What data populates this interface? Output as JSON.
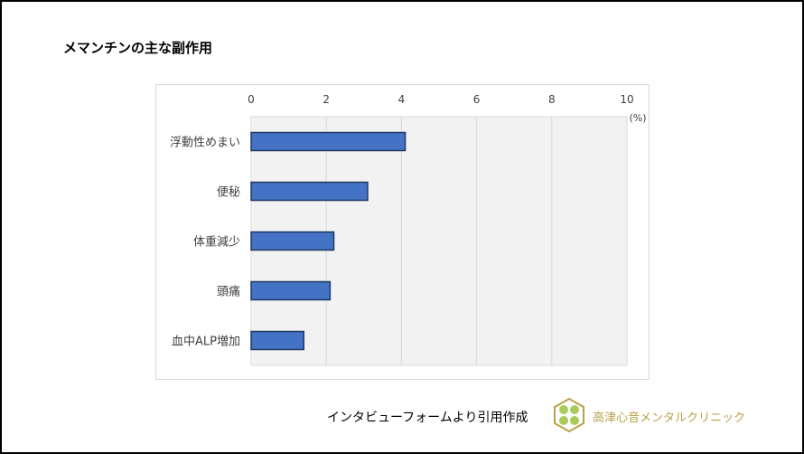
{
  "title": "メマンチンの主な副作用",
  "source_note": "インタビューフォームより引用作成",
  "logo": {
    "name": "高津心音メンタルクリニック",
    "color": "#b8a24a"
  },
  "chart_data": {
    "type": "bar",
    "orientation": "horizontal",
    "title": "",
    "categories": [
      "浮動性めまい",
      "便秘",
      "体重減少",
      "頭痛",
      "血中ALP増加"
    ],
    "values": [
      4.1,
      3.1,
      2.2,
      2.1,
      1.4
    ],
    "xlim": [
      0,
      10
    ],
    "xticks": [
      "0",
      "2",
      "4",
      "6",
      "8",
      "10"
    ],
    "unit_label": "(%)",
    "grid": true,
    "bar_color": "#4472c4",
    "bar_edge_color": "#1f3864",
    "plot_bg": "#f2f2f2"
  }
}
